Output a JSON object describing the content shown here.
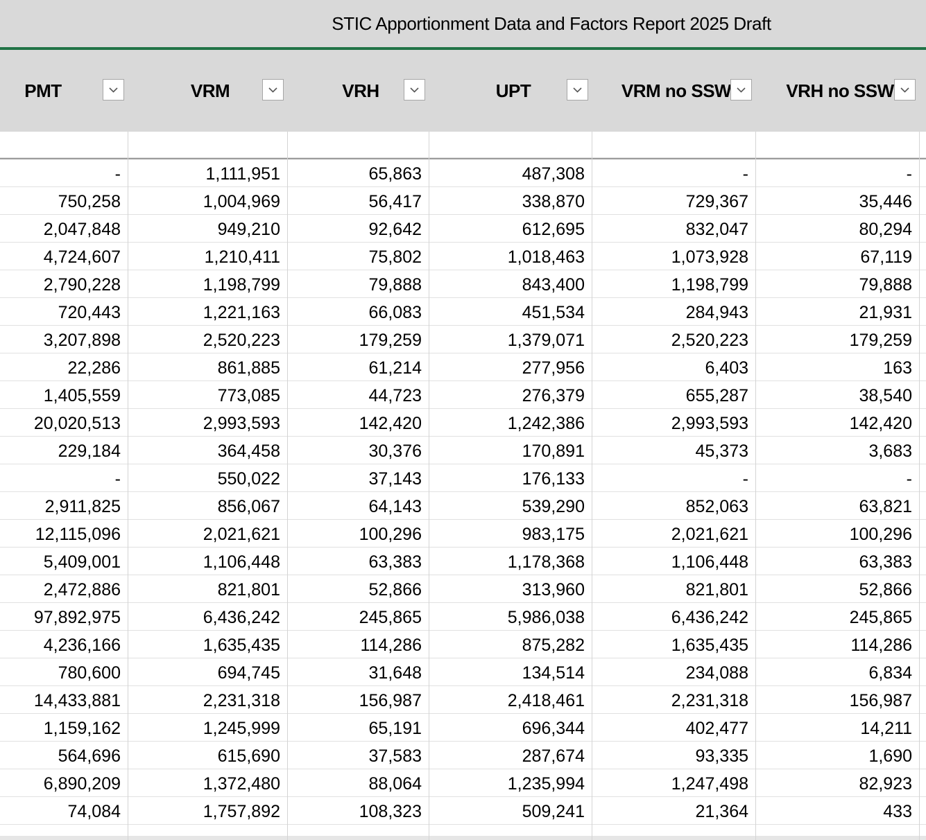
{
  "header": {
    "title": "STIC Apportionment Data and Factors Report 2025 Draft"
  },
  "table": {
    "columns": [
      "PMT",
      "VRM",
      "VRH",
      "UPT",
      "VRM no SSW",
      "VRH no SSW"
    ],
    "rows": [
      [
        "-",
        "1,111,951",
        "65,863",
        "487,308",
        "-",
        "-"
      ],
      [
        "750,258",
        "1,004,969",
        "56,417",
        "338,870",
        "729,367",
        "35,446"
      ],
      [
        "2,047,848",
        "949,210",
        "92,642",
        "612,695",
        "832,047",
        "80,294"
      ],
      [
        "4,724,607",
        "1,210,411",
        "75,802",
        "1,018,463",
        "1,073,928",
        "67,119"
      ],
      [
        "2,790,228",
        "1,198,799",
        "79,888",
        "843,400",
        "1,198,799",
        "79,888"
      ],
      [
        "720,443",
        "1,221,163",
        "66,083",
        "451,534",
        "284,943",
        "21,931"
      ],
      [
        "3,207,898",
        "2,520,223",
        "179,259",
        "1,379,071",
        "2,520,223",
        "179,259"
      ],
      [
        "22,286",
        "861,885",
        "61,214",
        "277,956",
        "6,403",
        "163"
      ],
      [
        "1,405,559",
        "773,085",
        "44,723",
        "276,379",
        "655,287",
        "38,540"
      ],
      [
        "20,020,513",
        "2,993,593",
        "142,420",
        "1,242,386",
        "2,993,593",
        "142,420"
      ],
      [
        "229,184",
        "364,458",
        "30,376",
        "170,891",
        "45,373",
        "3,683"
      ],
      [
        "-",
        "550,022",
        "37,143",
        "176,133",
        "-",
        "-"
      ],
      [
        "2,911,825",
        "856,067",
        "64,143",
        "539,290",
        "852,063",
        "63,821"
      ],
      [
        "12,115,096",
        "2,021,621",
        "100,296",
        "983,175",
        "2,021,621",
        "100,296"
      ],
      [
        "5,409,001",
        "1,106,448",
        "63,383",
        "1,178,368",
        "1,106,448",
        "63,383"
      ],
      [
        "2,472,886",
        "821,801",
        "52,866",
        "313,960",
        "821,801",
        "52,866"
      ],
      [
        "97,892,975",
        "6,436,242",
        "245,865",
        "5,986,038",
        "6,436,242",
        "245,865"
      ],
      [
        "4,236,166",
        "1,635,435",
        "114,286",
        "875,282",
        "1,635,435",
        "114,286"
      ],
      [
        "780,600",
        "694,745",
        "31,648",
        "134,514",
        "234,088",
        "6,834"
      ],
      [
        "14,433,881",
        "2,231,318",
        "156,987",
        "2,418,461",
        "2,231,318",
        "156,987"
      ],
      [
        "1,159,162",
        "1,245,999",
        "65,191",
        "696,344",
        "402,477",
        "14,211"
      ],
      [
        "564,696",
        "615,690",
        "37,583",
        "287,674",
        "93,335",
        "1,690"
      ],
      [
        "6,890,209",
        "1,372,480",
        "88,064",
        "1,235,994",
        "1,247,498",
        "82,923"
      ],
      [
        "74,084",
        "1,757,892",
        "108,323",
        "509,241",
        "21,364",
        "433"
      ]
    ]
  }
}
